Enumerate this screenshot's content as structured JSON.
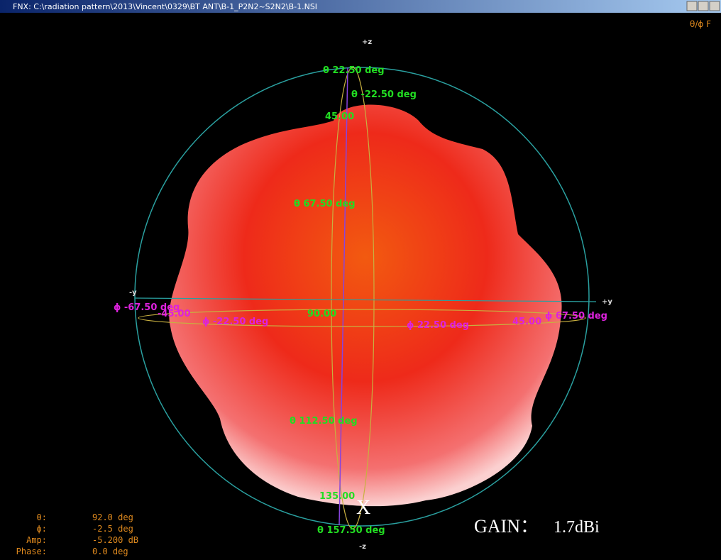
{
  "window": {
    "title": "FNX: C:\\radiation pattern\\2013\\Vincent\\0329\\BT ANT\\B-1_P2N2~S2N2\\B-1.NSI",
    "corner_label": "θ/ϕ F"
  },
  "axes": {
    "plus_z": "+z",
    "minus_z": "-z",
    "minus_y": "-y",
    "plus_y": "+y"
  },
  "theta_labels": [
    "θ 22.50 deg",
    "θ -22.50 deg",
    "45.00",
    "θ 67.50 deg",
    "90.00",
    "θ 112.50 deg",
    "135.00",
    "θ 157.50 deg"
  ],
  "phi_labels": [
    "ϕ -67.50 deg",
    "-45.00",
    "ϕ -22.50 deg",
    "ϕ 22.50 deg",
    "45.00",
    "ϕ 67.50 deg"
  ],
  "readout": {
    "rows": [
      {
        "label": "θ:",
        "value": "92.0 deg"
      },
      {
        "label": "ϕ:",
        "value": "-2.5 deg"
      },
      {
        "label": "Amp:",
        "value": "-5.200 dB"
      },
      {
        "label": "Phase:",
        "value": "0.0 deg"
      }
    ]
  },
  "marker": "X",
  "gain": {
    "label": "GAIN：",
    "value": "1.7dBi"
  }
}
